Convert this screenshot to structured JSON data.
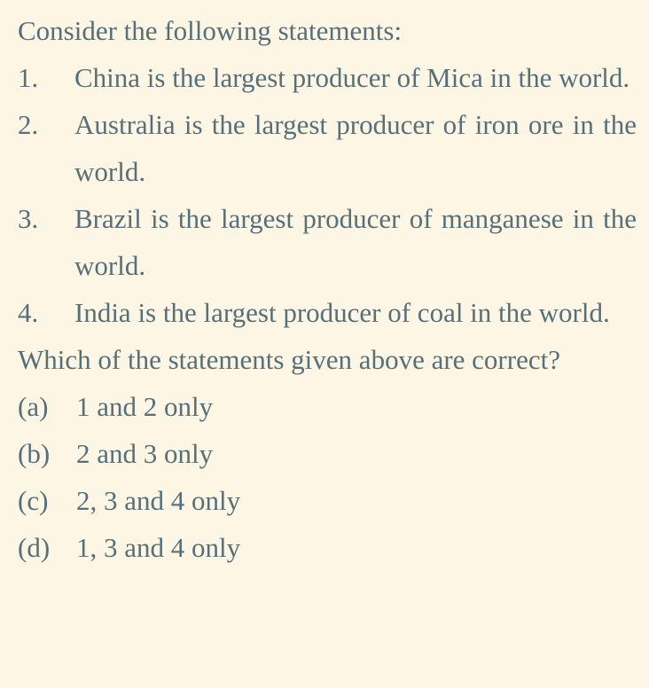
{
  "intro": "Consider the following statements:",
  "statements": [
    {
      "number": "1.",
      "text": "China is the largest producer of Mica in the world."
    },
    {
      "number": "2.",
      "text": "Australia is the largest producer of iron ore in the world."
    },
    {
      "number": "3.",
      "text": "Brazil is the largest producer of manganese in the world."
    },
    {
      "number": "4.",
      "text": "India is the largest producer of coal in the world."
    }
  ],
  "question": "Which of the statements given above are correct?",
  "options": [
    {
      "label": "(a)",
      "text": "1 and 2 only"
    },
    {
      "label": "(b)",
      "text": "2 and 3 only"
    },
    {
      "label": "(c)",
      "text": "2, 3 and 4 only"
    },
    {
      "label": "(d)",
      "text": "1, 3 and 4 only"
    }
  ],
  "colors": {
    "background": "#fdf6e4",
    "text": "#56707a"
  }
}
